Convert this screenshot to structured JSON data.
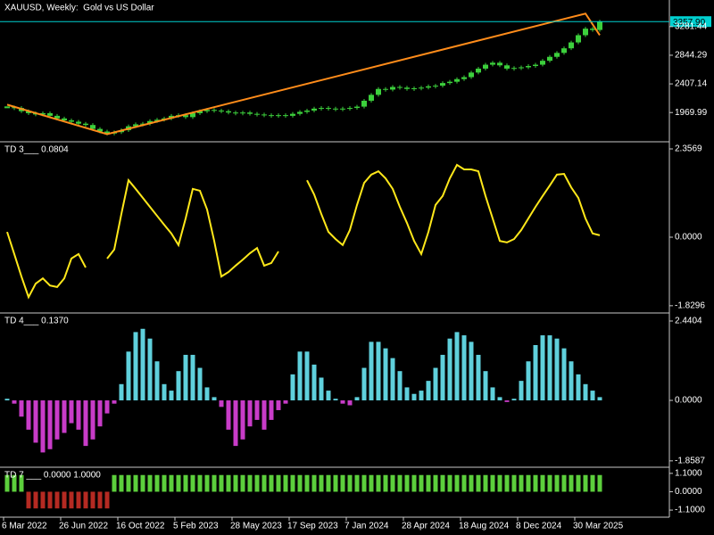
{
  "chart_data": [
    {
      "type": "candlestick",
      "title": "XAUUSD, Weekly:  Gold vs US Dollar",
      "color": "#3ccf3c",
      "values": [
        2050,
        2040,
        1990,
        1960,
        1940,
        1960,
        1920,
        1880,
        1850,
        1830,
        1800,
        1780,
        1720,
        1680,
        1650,
        1670,
        1700,
        1760,
        1790,
        1800,
        1840,
        1860,
        1880,
        1920,
        1930,
        1900,
        1960,
        1990,
        2010,
        2000,
        1990,
        1970,
        1960,
        1970,
        1950,
        1940,
        1930,
        1920,
        1930,
        1920,
        1950,
        1980,
        2000,
        2030,
        2040,
        2030,
        2020,
        2030,
        2040,
        2060,
        2150,
        2240,
        2330,
        2320,
        2360,
        2350,
        2330,
        2340,
        2350,
        2370,
        2380,
        2420,
        2440,
        2480,
        2510,
        2580,
        2640,
        2700,
        2730,
        2690,
        2640,
        2650,
        2660,
        2680,
        2700,
        2760,
        2820,
        2880,
        2950,
        3040,
        3150,
        3250,
        3230,
        3357.9
      ],
      "trend": {
        "x": [
          0,
          14,
          81,
          83
        ],
        "values": [
          2090,
          1640,
          3480,
          3150
        ],
        "color": "#ff8c1a"
      },
      "last_price": {
        "value": 3357.9,
        "label": "3357.90"
      },
      "last_price_color": "#00d0d0",
      "ylim": [
        1551,
        3660
      ],
      "yticks": [
        3281.44,
        2844.29,
        2407.14,
        1969.99
      ]
    },
    {
      "type": "line",
      "title": "TD 3___ 0.0804",
      "color": "#ffe81a",
      "values": [
        0.14,
        -0.45,
        -1.05,
        -1.6,
        -1.24,
        -1.1,
        -1.29,
        -1.33,
        -1.1,
        -0.57,
        -0.45,
        -0.81,
        null,
        null,
        -0.57,
        -0.33,
        0.62,
        1.52,
        1.29,
        1.05,
        0.81,
        0.57,
        0.33,
        0.1,
        -0.21,
        0.5,
        1.29,
        1.24,
        0.74,
        -0.1,
        -1.05,
        -0.93,
        -0.76,
        -0.6,
        -0.43,
        -0.29,
        -0.76,
        -0.69,
        -0.38,
        null,
        null,
        null,
        1.52,
        1.14,
        0.62,
        0.14,
        -0.05,
        -0.21,
        0.19,
        0.86,
        1.45,
        1.67,
        1.76,
        1.57,
        1.29,
        0.81,
        0.38,
        -0.1,
        -0.45,
        0.14,
        0.86,
        1.1,
        1.57,
        1.93,
        1.81,
        1.81,
        1.76,
        1.1,
        0.5,
        -0.1,
        -0.14,
        -0.05,
        0.19,
        0.5,
        0.81,
        1.1,
        1.38,
        1.67,
        1.69,
        1.33,
        1.05,
        0.5,
        0.1,
        0.05
      ],
      "ylim": [
        -1.976,
        2.5
      ],
      "yticks": [
        2.3569,
        {
          "value": 0,
          "label": "0.0000"
        },
        -1.8296
      ]
    },
    {
      "type": "bar",
      "title": "TD 4___ 0.1370",
      "up_color": "#5fd0dc",
      "down_color": "#c83cc8",
      "values": [
        0.05,
        -0.1,
        -0.5,
        -0.9,
        -1.3,
        -1.6,
        -1.5,
        -1.2,
        -1.0,
        -0.7,
        -0.9,
        -1.4,
        -1.2,
        -0.8,
        -0.4,
        -0.1,
        0.5,
        1.5,
        2.1,
        2.2,
        1.9,
        1.2,
        0.5,
        0.3,
        0.9,
        1.4,
        1.4,
        1.0,
        0.4,
        0.1,
        -0.2,
        -0.9,
        -1.4,
        -1.2,
        -0.8,
        -0.6,
        -0.9,
        -0.6,
        -0.3,
        -0.1,
        0.8,
        1.5,
        1.5,
        1.1,
        0.7,
        0.3,
        0.05,
        -0.1,
        -0.15,
        0.1,
        1.0,
        1.8,
        1.8,
        1.6,
        1.3,
        0.9,
        0.4,
        0.2,
        0.3,
        0.6,
        1.0,
        1.4,
        1.9,
        2.1,
        2.0,
        1.8,
        1.4,
        0.9,
        0.4,
        0.1,
        -0.05,
        0.05,
        0.6,
        1.2,
        1.7,
        2.0,
        2.0,
        1.9,
        1.6,
        1.2,
        0.8,
        0.5,
        0.3,
        0.1
      ],
      "ylim": [
        -2.0,
        2.632
      ],
      "yticks": [
        2.4404,
        {
          "value": 0,
          "label": "0.0000"
        },
        -1.8587
      ]
    },
    {
      "type": "bar",
      "title": "TD 7 ___ 0.0000 1.0000",
      "up_color": "#5ccf3c",
      "down_color": "#b52a22",
      "values": [
        1,
        1,
        1,
        -1,
        -1,
        -1,
        -1,
        -1,
        -1,
        -1,
        -1,
        -1,
        -1,
        -1,
        -1,
        1,
        1,
        1,
        1,
        1,
        1,
        1,
        1,
        1,
        1,
        1,
        1,
        1,
        1,
        1,
        1,
        1,
        1,
        1,
        1,
        1,
        1,
        1,
        1,
        1,
        1,
        1,
        1,
        1,
        1,
        1,
        1,
        1,
        1,
        1,
        1,
        1,
        1,
        1,
        1,
        1,
        1,
        1,
        1,
        1,
        1,
        1,
        1,
        1,
        1,
        1,
        1,
        1,
        1,
        1,
        1,
        1,
        1,
        1,
        1,
        1,
        1,
        1,
        1,
        1,
        1,
        1,
        1,
        1
      ],
      "ylim": [
        -1.47,
        1.36
      ],
      "yticks": [
        {
          "value": 1.1,
          "label": "1.1000"
        },
        {
          "value": 0,
          "label": "0.0000"
        },
        {
          "value": -1.1,
          "label": "-1.1000"
        }
      ],
      "categories": [
        "6 Mar 2022",
        null,
        null,
        null,
        null,
        null,
        null,
        null,
        "26 Jun 2022",
        null,
        null,
        null,
        null,
        null,
        null,
        null,
        "16 Oct 2022",
        null,
        null,
        null,
        null,
        null,
        null,
        null,
        "5 Feb 2023",
        null,
        null,
        null,
        null,
        null,
        null,
        null,
        "28 May 2023",
        null,
        null,
        null,
        null,
        null,
        null,
        null,
        "17 Sep 2023",
        null,
        null,
        null,
        null,
        null,
        null,
        null,
        "7 Jan 2024",
        null,
        null,
        null,
        null,
        null,
        null,
        null,
        "28 Apr 2024",
        null,
        null,
        null,
        null,
        null,
        null,
        null,
        "18 Aug 2024",
        null,
        null,
        null,
        null,
        null,
        null,
        null,
        "8 Dec 2024",
        null,
        null,
        null,
        null,
        null,
        null,
        null,
        "30 Mar 2025",
        null,
        null,
        null
      ]
    }
  ]
}
